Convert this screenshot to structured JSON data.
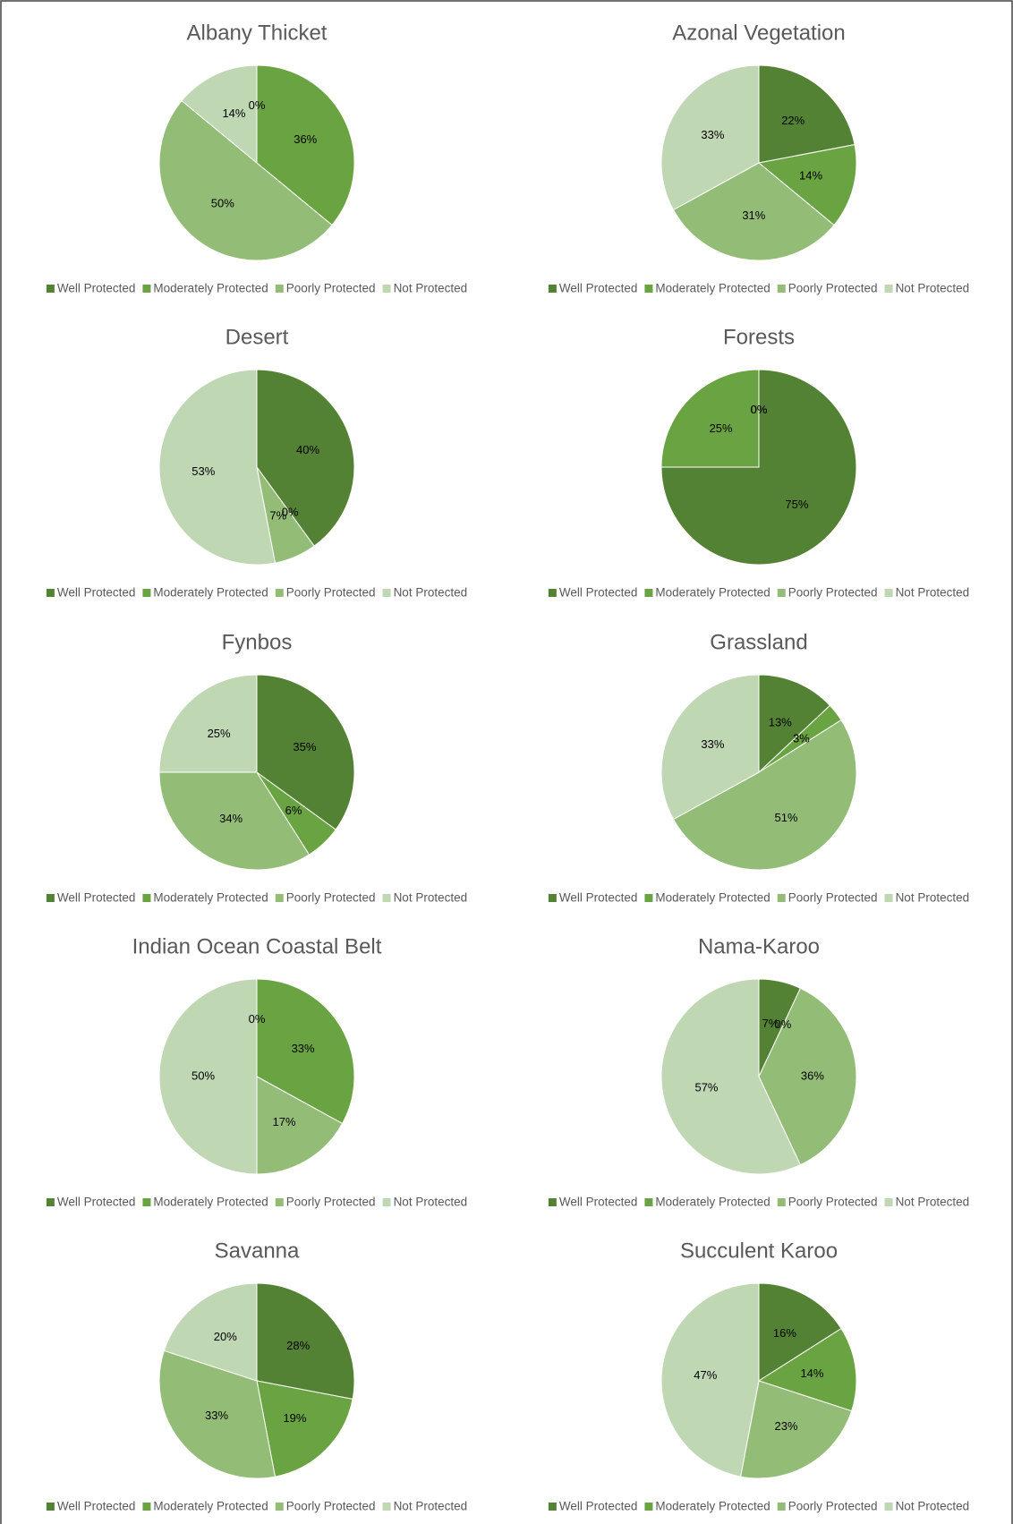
{
  "chart_data": [
    {
      "type": "pie",
      "title": "Albany Thicket",
      "categories": [
        "Well Protected",
        "Moderately Protected",
        "Poorly Protected",
        "Not Protected"
      ],
      "values": [
        0,
        36,
        50,
        14
      ],
      "value_labels": [
        "0%",
        "36%",
        "50%",
        "14%"
      ],
      "colors": [
        "#548235",
        "#6aa341",
        "#93bd77",
        "#c0d7b4"
      ]
    },
    {
      "type": "pie",
      "title": "Azonal Vegetation",
      "categories": [
        "Well Protected",
        "Moderately Protected",
        "Poorly Protected",
        "Not Protected"
      ],
      "values": [
        22,
        14,
        31,
        33
      ],
      "value_labels": [
        "22%",
        "14%",
        "31%",
        "33%"
      ],
      "colors": [
        "#548235",
        "#6aa341",
        "#93bd77",
        "#c0d7b4"
      ]
    },
    {
      "type": "pie",
      "title": "Desert",
      "categories": [
        "Well Protected",
        "Moderately Protected",
        "Poorly Protected",
        "Not Protected"
      ],
      "values": [
        40,
        0,
        7,
        53
      ],
      "value_labels": [
        "40%",
        "0%",
        "7%",
        "53%"
      ],
      "colors": [
        "#548235",
        "#6aa341",
        "#93bd77",
        "#c0d7b4"
      ]
    },
    {
      "type": "pie",
      "title": "Forests",
      "categories": [
        "Well Protected",
        "Moderately Protected",
        "Poorly Protected",
        "Not Protected"
      ],
      "values": [
        75,
        25,
        0,
        0
      ],
      "value_labels": [
        "75%",
        "25%",
        "0%",
        "0%"
      ],
      "colors": [
        "#548235",
        "#6aa341",
        "#93bd77",
        "#c0d7b4"
      ]
    },
    {
      "type": "pie",
      "title": "Fynbos",
      "categories": [
        "Well Protected",
        "Moderately Protected",
        "Poorly Protected",
        "Not Protected"
      ],
      "values": [
        35,
        6,
        34,
        25
      ],
      "value_labels": [
        "35%",
        "6%",
        "34%",
        "25%"
      ],
      "colors": [
        "#548235",
        "#6aa341",
        "#93bd77",
        "#c0d7b4"
      ]
    },
    {
      "type": "pie",
      "title": "Grassland",
      "categories": [
        "Well Protected",
        "Moderately Protected",
        "Poorly Protected",
        "Not Protected"
      ],
      "values": [
        13,
        3,
        51,
        33
      ],
      "value_labels": [
        "13%",
        "3%",
        "51%",
        "33%"
      ],
      "colors": [
        "#548235",
        "#6aa341",
        "#93bd77",
        "#c0d7b4"
      ]
    },
    {
      "type": "pie",
      "title": "Indian Ocean Coastal Belt",
      "categories": [
        "Well Protected",
        "Moderately Protected",
        "Poorly Protected",
        "Not Protected"
      ],
      "values": [
        0,
        33,
        17,
        50
      ],
      "value_labels": [
        "0%",
        "33%",
        "17%",
        "50%"
      ],
      "colors": [
        "#548235",
        "#6aa341",
        "#93bd77",
        "#c0d7b4"
      ]
    },
    {
      "type": "pie",
      "title": "Nama-Karoo",
      "categories": [
        "Well Protected",
        "Moderately Protected",
        "Poorly Protected",
        "Not Protected"
      ],
      "values": [
        7,
        0,
        36,
        57
      ],
      "value_labels": [
        "7%",
        "0%",
        "36%",
        "57%"
      ],
      "colors": [
        "#548235",
        "#6aa341",
        "#93bd77",
        "#c0d7b4"
      ]
    },
    {
      "type": "pie",
      "title": "Savanna",
      "categories": [
        "Well Protected",
        "Moderately Protected",
        "Poorly Protected",
        "Not Protected"
      ],
      "values": [
        28,
        19,
        33,
        20
      ],
      "value_labels": [
        "28%",
        "19%",
        "33%",
        "20%"
      ],
      "colors": [
        "#548235",
        "#6aa341",
        "#93bd77",
        "#c0d7b4"
      ]
    },
    {
      "type": "pie",
      "title": "Succulent Karoo",
      "categories": [
        "Well Protected",
        "Moderately Protected",
        "Poorly Protected",
        "Not Protected"
      ],
      "values": [
        16,
        14,
        23,
        47
      ],
      "value_labels": [
        "16%",
        "14%",
        "23%",
        "47%"
      ],
      "colors": [
        "#548235",
        "#6aa341",
        "#93bd77",
        "#c0d7b4"
      ]
    }
  ]
}
